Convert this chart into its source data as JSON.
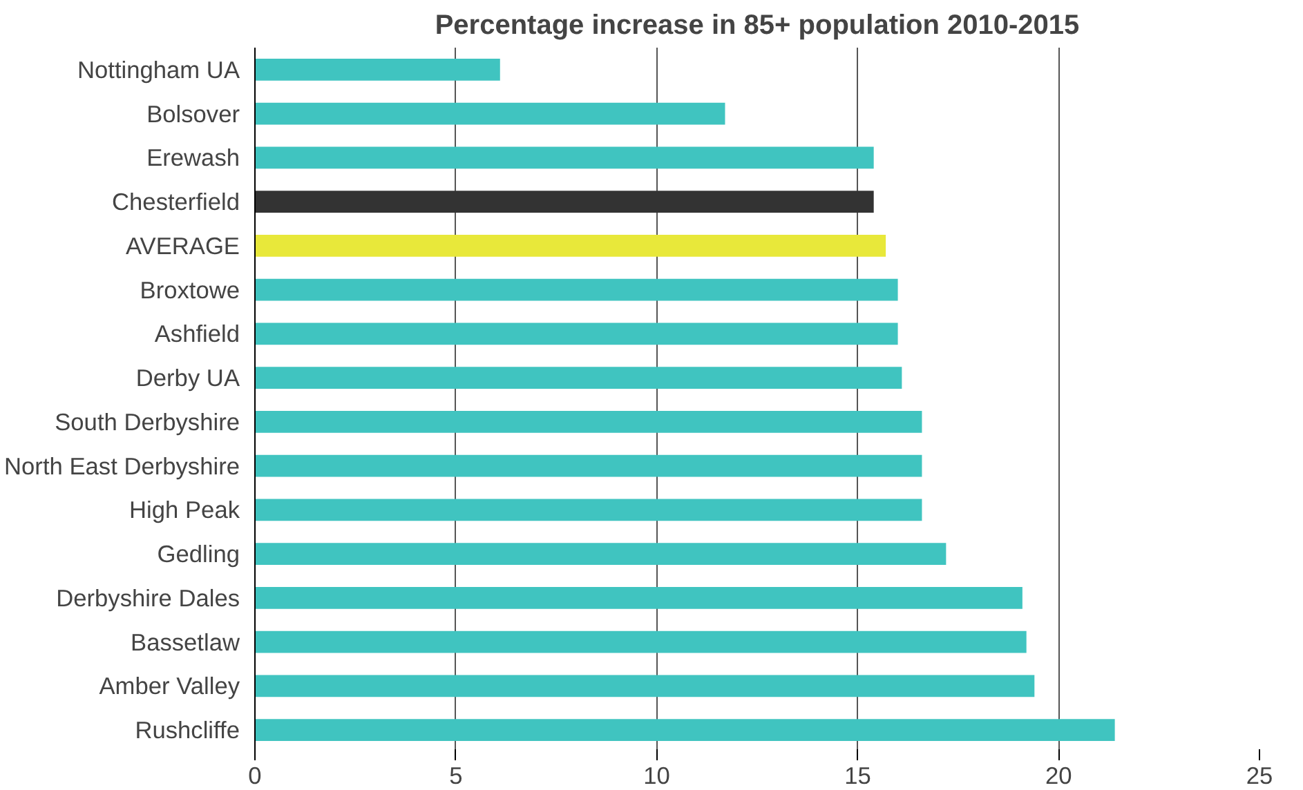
{
  "chart_data": {
    "type": "bar",
    "orientation": "horizontal",
    "title": "Percentage increase in 85+ population 2010-2015",
    "categories": [
      "Nottingham UA",
      "Bolsover",
      "Erewash",
      "Chesterfield",
      "AVERAGE",
      "Broxtowe",
      "Ashfield",
      "Derby UA",
      "South Derbyshire",
      "North East Derbyshire",
      "High Peak",
      "Gedling",
      "Derbyshire Dales",
      "Bassetlaw",
      "Amber Valley",
      "Rushcliffe"
    ],
    "values": [
      6.1,
      11.7,
      15.4,
      15.4,
      15.7,
      16.0,
      16.0,
      16.1,
      16.6,
      16.6,
      16.6,
      17.2,
      19.1,
      19.2,
      19.4,
      21.4
    ],
    "colors": [
      "#40c4c0",
      "#40c4c0",
      "#40c4c0",
      "#333333",
      "#e8e83a",
      "#40c4c0",
      "#40c4c0",
      "#40c4c0",
      "#40c4c0",
      "#40c4c0",
      "#40c4c0",
      "#40c4c0",
      "#40c4c0",
      "#40c4c0",
      "#40c4c0",
      "#40c4c0"
    ],
    "xlim": [
      0,
      25
    ],
    "xticks": [
      0,
      5,
      10,
      15,
      20,
      25
    ],
    "grid": "x"
  }
}
